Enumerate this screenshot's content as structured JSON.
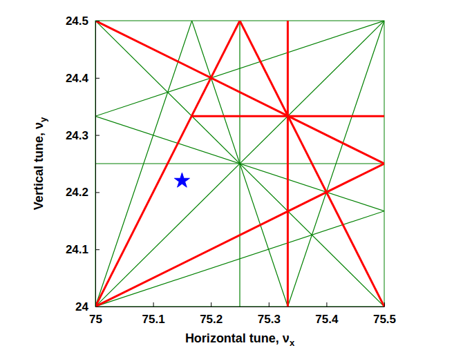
{
  "chart_data": {
    "type": "line",
    "xlabel": "Horizontal tune, νx",
    "ylabel": "Vertical tune, νy",
    "xlim": [
      75,
      75.5
    ],
    "ylim": [
      24,
      24.5
    ],
    "xticks": [
      75,
      75.1,
      75.2,
      75.3,
      75.4,
      75.5
    ],
    "yticks": [
      24,
      24.1,
      24.2,
      24.3,
      24.4,
      24.5
    ],
    "grid": false,
    "series": [
      {
        "type": "line",
        "color": "#008000",
        "x": [
          75.25,
          75.25,
          null,
          75,
          75.5,
          null,
          75,
          75.5,
          null,
          75,
          75.5,
          null,
          75,
          75.5,
          null,
          75,
          75.5,
          null,
          75,
          75.5,
          null,
          75.167,
          75.333,
          null,
          75,
          75.167,
          null,
          75.333,
          75.5
        ],
        "values": [
          24,
          24.5,
          null,
          24.25,
          24.25,
          null,
          24,
          24.5,
          null,
          24.5,
          24,
          null,
          24.333,
          24.167,
          null,
          24.333,
          24.5,
          null,
          24,
          24.167,
          null,
          24.5,
          24,
          null,
          24,
          24.5,
          null,
          24,
          24.5
        ]
      },
      {
        "type": "line",
        "color": "#ff0000",
        "x": [
          75.333,
          75.333,
          null,
          75.167,
          75.5,
          null,
          75,
          75.5,
          null,
          75,
          75.25,
          null,
          75.25,
          75.5,
          null,
          75,
          75.5
        ],
        "values": [
          24,
          24.5,
          null,
          24.333,
          24.333,
          null,
          24.5,
          24.25,
          null,
          24,
          24.5,
          null,
          24.5,
          24,
          null,
          24,
          24.25
        ]
      },
      {
        "type": "scatter",
        "marker": "star",
        "color": "#0000ff",
        "x": [
          75.15
        ],
        "values": [
          24.22
        ]
      }
    ]
  }
}
